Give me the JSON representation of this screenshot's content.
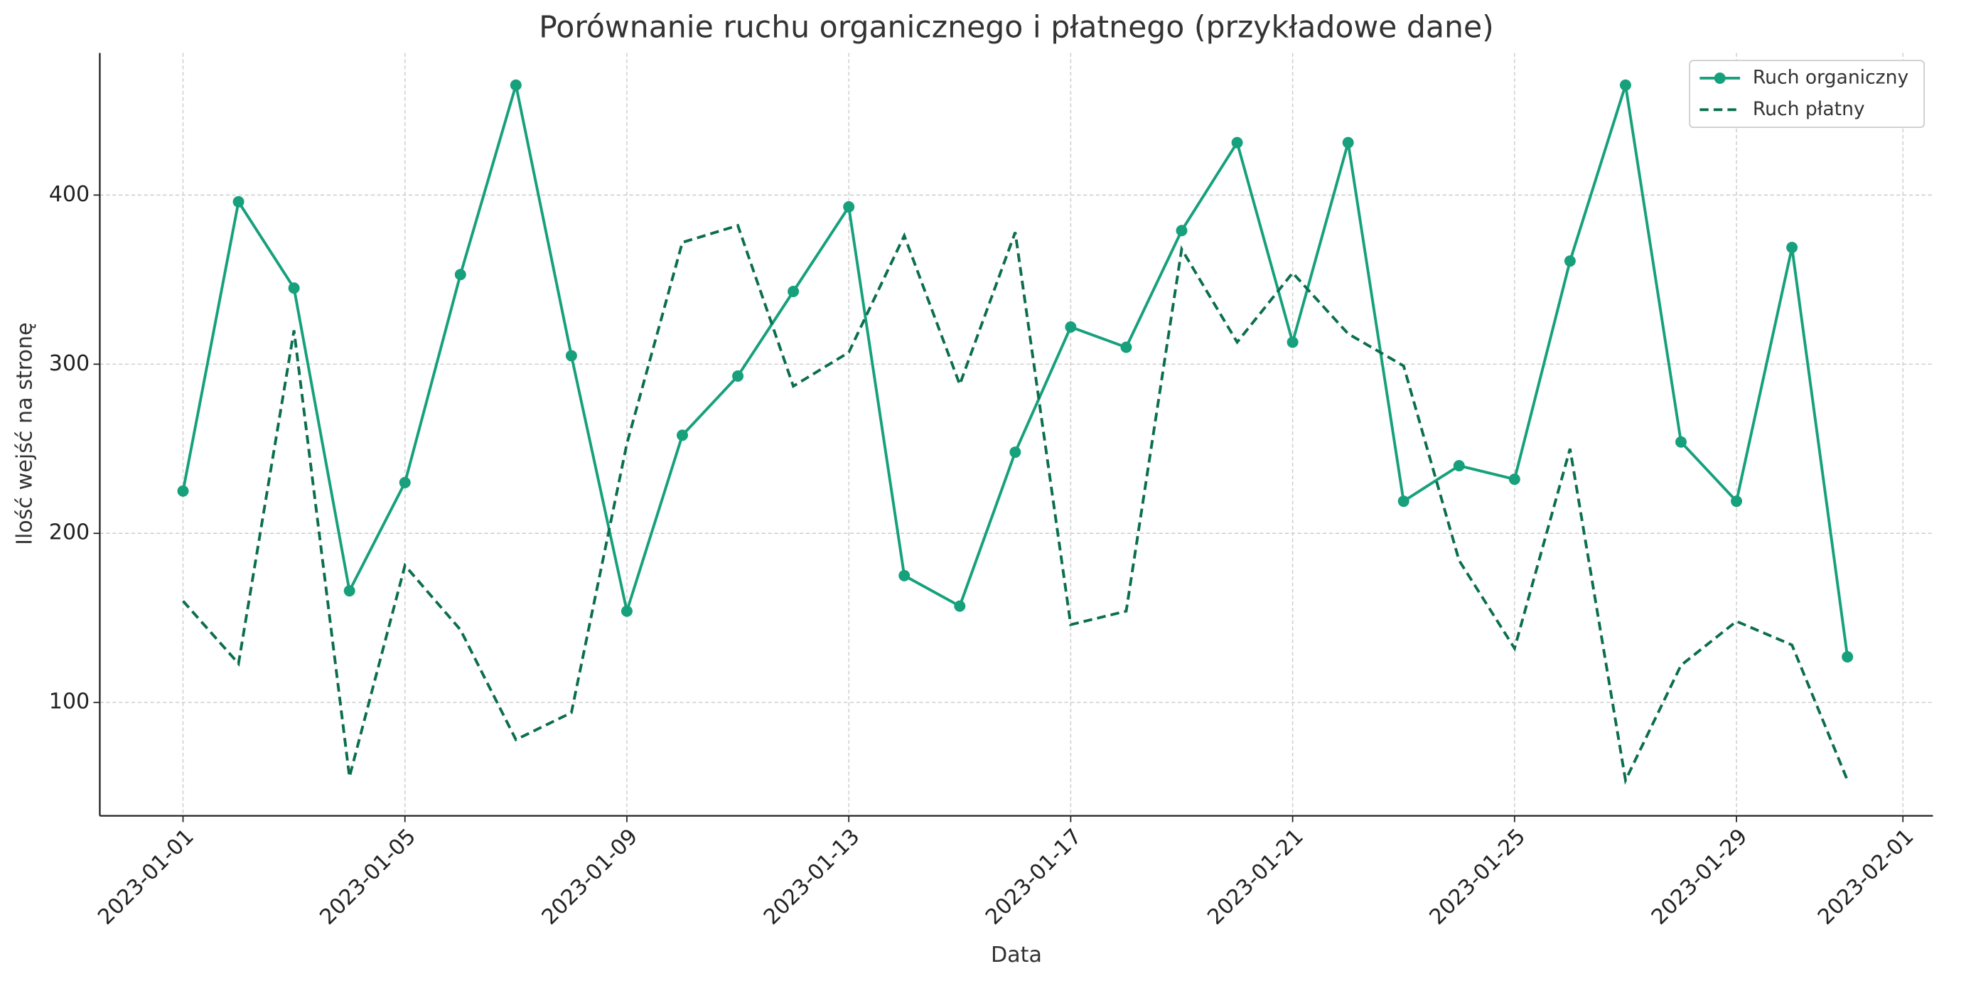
{
  "chart_data": {
    "type": "line",
    "title": "Porównanie ruchu organicznego i płatnego (przykładowe dane)",
    "xlabel": "Data",
    "ylabel": "Ilość wejść na stronę",
    "x": [
      "2023-01-01",
      "2023-01-02",
      "2023-01-03",
      "2023-01-04",
      "2023-01-05",
      "2023-01-06",
      "2023-01-07",
      "2023-01-08",
      "2023-01-09",
      "2023-01-10",
      "2023-01-11",
      "2023-01-12",
      "2023-01-13",
      "2023-01-14",
      "2023-01-15",
      "2023-01-16",
      "2023-01-17",
      "2023-01-18",
      "2023-01-19",
      "2023-01-20",
      "2023-01-21",
      "2023-01-22",
      "2023-01-23",
      "2023-01-24",
      "2023-01-25",
      "2023-01-26",
      "2023-01-27",
      "2023-01-28",
      "2023-01-29",
      "2023-01-30",
      "2023-01-31"
    ],
    "series": [
      {
        "name": "Ruch organiczny",
        "color": "#16a07b",
        "linestyle": "solid",
        "marker": true,
        "values": [
          225,
          396,
          345,
          166,
          230,
          353,
          465,
          305,
          154,
          258,
          293,
          343,
          393,
          175,
          157,
          248,
          322,
          310,
          379,
          431,
          313,
          431,
          219,
          240,
          232,
          361,
          465,
          254,
          219,
          369,
          127
        ]
      },
      {
        "name": "Ruch płatny",
        "color": "#0b6e4f",
        "linestyle": "dashed",
        "marker": false,
        "values": [
          160,
          123,
          320,
          56,
          181,
          143,
          78,
          94,
          253,
          372,
          382,
          287,
          307,
          376,
          288,
          378,
          146,
          154,
          368,
          313,
          354,
          318,
          299,
          184,
          132,
          250,
          54,
          122,
          148,
          134,
          54
        ]
      }
    ],
    "xlim": [
      "2022-12-30T12:00",
      "2023-02-01T13:00"
    ],
    "xticks": [
      "2023-01-01",
      "2023-01-05",
      "2023-01-09",
      "2023-01-13",
      "2023-01-17",
      "2023-01-21",
      "2023-01-25",
      "2023-01-29",
      "2023-02-01"
    ],
    "ylim": [
      33,
      484
    ],
    "yticks": [
      100,
      200,
      300,
      400
    ],
    "grid": true,
    "legend": "upper right"
  }
}
